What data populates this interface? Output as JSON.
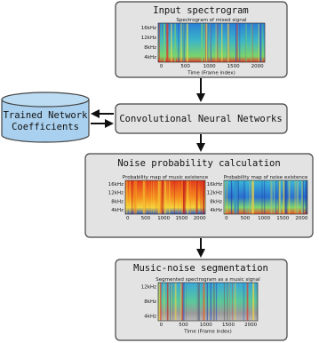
{
  "input": {
    "title": "Input spectrogram",
    "plot": {
      "title": "Spectrogram of mixed signal",
      "yticks": [
        "16kHz",
        "12kHz",
        "8kHz",
        "4kHz"
      ],
      "xticks": [
        "0",
        "500",
        "1000",
        "1500",
        "2000"
      ],
      "xlabel": "Time (Frame index)"
    }
  },
  "cnn": {
    "label": "Convolutional Neural Networks"
  },
  "coefficients": {
    "lines": [
      "Trained Network",
      "Coefficients"
    ]
  },
  "noise_prob": {
    "title": "Noise probability calculation",
    "music_map": {
      "title": "Probability map of music existence",
      "yticks": [
        "16kHz",
        "12kHz",
        "8kHz",
        "4kHz"
      ],
      "xticks": [
        "0",
        "500",
        "1000",
        "1500",
        "2000"
      ]
    },
    "noise_map": {
      "title": "Probability map of noise existence",
      "yticks": [
        "16kHz",
        "12kHz",
        "8kHz",
        "4kHz"
      ],
      "xticks": [
        "0",
        "500",
        "1000",
        "1500",
        "2000"
      ]
    }
  },
  "segmentation": {
    "title": "Music-noise segmentation",
    "plot": {
      "title": "Segmented spectrogram as a music signal",
      "yticks": [
        "12kHz",
        "8kHz",
        "4kHz"
      ],
      "xticks": [
        "0",
        "500",
        "1000",
        "1500",
        "2000"
      ],
      "xlabel": "Time (Frame index)"
    }
  }
}
